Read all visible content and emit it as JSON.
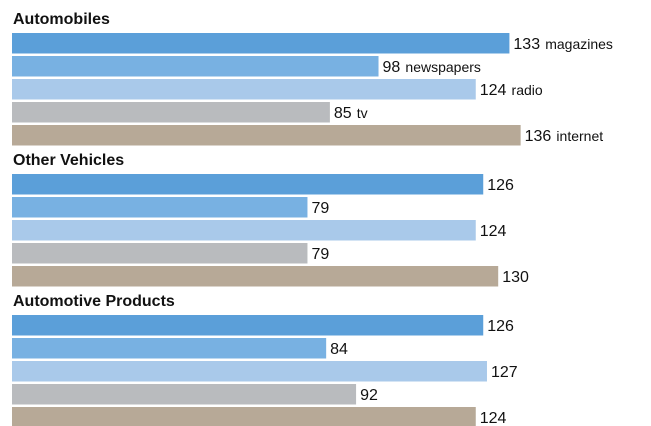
{
  "chart_data": {
    "type": "bar",
    "orientation": "horizontal",
    "grid": false,
    "legend": "none",
    "groups": [
      "Automobiles",
      "Other Vehicles",
      "Automotive Products"
    ],
    "series": [
      {
        "name": "magazines",
        "color": "#5b9fd9",
        "values": [
          133,
          126,
          126
        ]
      },
      {
        "name": "newspapers",
        "color": "#78b1e2",
        "values": [
          98,
          79,
          84
        ]
      },
      {
        "name": "radio",
        "color": "#a9c9ea",
        "values": [
          124,
          124,
          127
        ]
      },
      {
        "name": "tv",
        "color": "#b9bbbe",
        "values": [
          85,
          79,
          92
        ]
      },
      {
        "name": "internet",
        "color": "#b7a997",
        "values": [
          136,
          130,
          124
        ]
      }
    ],
    "category_labels_shown_in_group": 0,
    "xlim": [
      0,
      136
    ]
  }
}
